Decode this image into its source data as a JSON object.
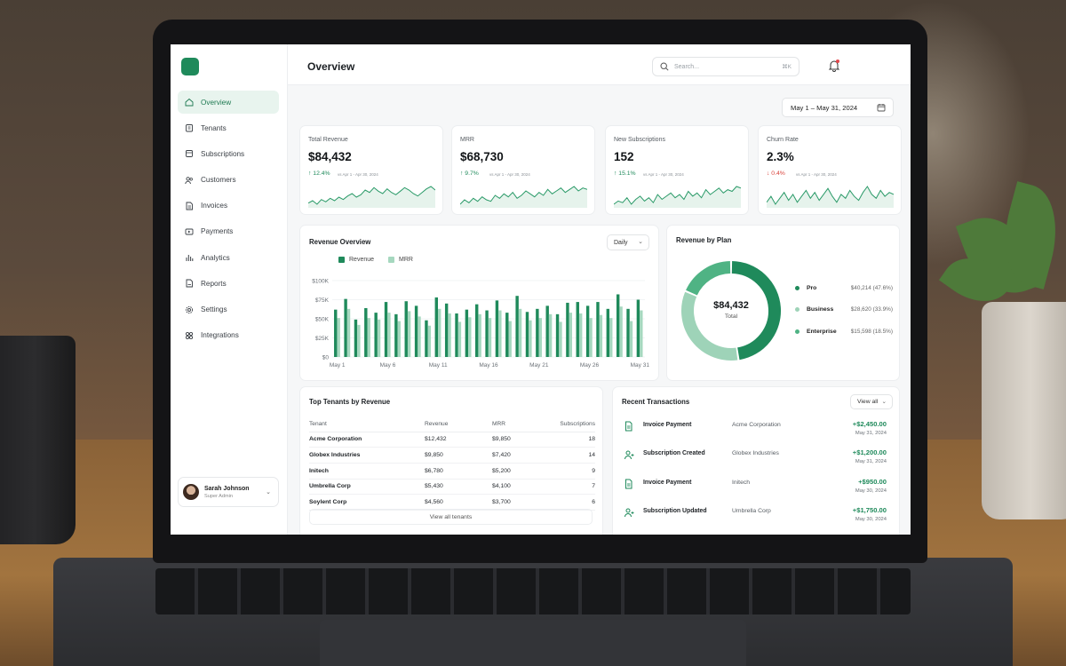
{
  "app": {
    "page_title": "Overview"
  },
  "sidebar": {
    "items": [
      {
        "label": "Overview",
        "icon": "home-icon",
        "active": true
      },
      {
        "label": "Tenants",
        "icon": "building-icon"
      },
      {
        "label": "Subscriptions",
        "icon": "box-icon"
      },
      {
        "label": "Customers",
        "icon": "users-icon"
      },
      {
        "label": "Invoices",
        "icon": "file-icon"
      },
      {
        "label": "Payments",
        "icon": "card-icon"
      },
      {
        "label": "Analytics",
        "icon": "bar-chart-icon"
      },
      {
        "label": "Reports",
        "icon": "report-icon"
      },
      {
        "label": "Settings",
        "icon": "gear-icon"
      },
      {
        "label": "Integrations",
        "icon": "grid-icon"
      }
    ],
    "user": {
      "name": "Sarah Johnson",
      "role": "Super Admin"
    }
  },
  "header": {
    "search_placeholder": "Search...",
    "search_shortcut": "⌘K"
  },
  "date_range": "May 1 – May 31, 2024",
  "kpis": [
    {
      "label": "Total Revenue",
      "value": "$84,432",
      "delta": "↑ 12.4%",
      "period": "vs Apr 1 - Apr 30, 2024",
      "negative": false,
      "trend": [
        22,
        24,
        21,
        25,
        23,
        26,
        24,
        27,
        25,
        28,
        30,
        27,
        29,
        33,
        31,
        35,
        32,
        30,
        34,
        31,
        29,
        32,
        35,
        33,
        30,
        28,
        31,
        34,
        36,
        33
      ]
    },
    {
      "label": "MRR",
      "value": "$68,730",
      "delta": "↑ 9.7%",
      "period": "vs Apr 1 - Apr 30, 2024",
      "negative": false,
      "trend": [
        20,
        23,
        21,
        24,
        22,
        25,
        23,
        22,
        26,
        24,
        27,
        25,
        28,
        24,
        26,
        29,
        27,
        25,
        28,
        26,
        30,
        27,
        29,
        31,
        28,
        30,
        32,
        29,
        31,
        30
      ]
    },
    {
      "label": "New Subscriptions",
      "value": "152",
      "delta": "↑ 15.1%",
      "period": "vs Apr 1 - Apr 30, 2024",
      "negative": false,
      "trend": [
        21,
        23,
        22,
        25,
        21,
        24,
        26,
        23,
        25,
        22,
        27,
        24,
        26,
        28,
        25,
        27,
        24,
        29,
        26,
        28,
        25,
        30,
        27,
        29,
        31,
        28,
        30,
        29,
        32,
        31
      ]
    },
    {
      "label": "Churn Rate",
      "value": "2.3%",
      "delta": "↓ 0.4%",
      "period": "vs Apr 1 - Apr 30, 2024",
      "negative": true,
      "trend": [
        24,
        27,
        23,
        26,
        29,
        25,
        28,
        24,
        27,
        30,
        26,
        29,
        25,
        28,
        31,
        27,
        24,
        28,
        26,
        30,
        27,
        25,
        29,
        32,
        28,
        26,
        30,
        27,
        29,
        28
      ]
    }
  ],
  "revenue_overview": {
    "title": "Revenue Overview",
    "granularity": "Daily",
    "legend": [
      "Revenue",
      "MRR"
    ],
    "colors": {
      "revenue": "#1f8a5b",
      "mrr": "#a6d8bf"
    }
  },
  "revenue_by_plan": {
    "title": "Revenue by Plan",
    "total_value": "$84,432",
    "total_label": "Total",
    "plans": [
      {
        "name": "Pro",
        "value": "$40,214",
        "pct": "(47.6%)",
        "share": 0.476,
        "color": "#1f8a5b"
      },
      {
        "name": "Business",
        "value": "$28,620",
        "pct": "(33.9%)",
        "share": 0.339,
        "color": "#9ed3b8"
      },
      {
        "name": "Enterprise",
        "value": "$15,598",
        "pct": "(18.5%)",
        "share": 0.185,
        "color": "#4fb384"
      }
    ]
  },
  "top_tenants": {
    "title": "Top Tenants by Revenue",
    "columns": [
      "Tenant",
      "Revenue",
      "MRR",
      "Subscriptions"
    ],
    "rows": [
      [
        "Acme Corporation",
        "$12,432",
        "$9,850",
        "18"
      ],
      [
        "Globex Industries",
        "$9,850",
        "$7,420",
        "14"
      ],
      [
        "Initech",
        "$6,780",
        "$5,200",
        "9"
      ],
      [
        "Umbrella Corp",
        "$5,430",
        "$4,100",
        "7"
      ],
      [
        "Soylent Corp",
        "$4,560",
        "$3,700",
        "6"
      ]
    ],
    "view_all": "View all tenants"
  },
  "recent_transactions": {
    "title": "Recent Transactions",
    "view_all": "View all",
    "rows": [
      {
        "type": "Invoice Payment",
        "tenant": "Acme Corporation",
        "amount": "+$2,450.00",
        "date": "May 31, 2024",
        "icon": "invoice-icon"
      },
      {
        "type": "Subscription Created",
        "tenant": "Globex Industries",
        "amount": "+$1,200.00",
        "date": "May 31, 2024",
        "icon": "user-plus-icon"
      },
      {
        "type": "Invoice Payment",
        "tenant": "Initech",
        "amount": "+$950.00",
        "date": "May 30, 2024",
        "icon": "invoice-icon"
      },
      {
        "type": "Subscription Updated",
        "tenant": "Umbrella Corp",
        "amount": "+$1,750.00",
        "date": "May 30, 2024",
        "icon": "user-plus-icon"
      }
    ]
  },
  "chart_data": {
    "type": "bar",
    "x_tick_labels": [
      "May 1",
      "May 6",
      "May 11",
      "May 16",
      "May 21",
      "May 26",
      "May 31"
    ],
    "y_tick_labels": [
      "$100K",
      "$75K",
      "$50K",
      "$25K",
      "$0"
    ],
    "ylim": [
      0,
      100000
    ],
    "legend_placement": "top-left",
    "grid": true,
    "categories": [
      "May 1",
      "May 2",
      "May 3",
      "May 4",
      "May 5",
      "May 6",
      "May 7",
      "May 8",
      "May 9",
      "May 10",
      "May 11",
      "May 12",
      "May 13",
      "May 14",
      "May 15",
      "May 16",
      "May 17",
      "May 18",
      "May 19",
      "May 20",
      "May 21",
      "May 22",
      "May 23",
      "May 24",
      "May 25",
      "May 26",
      "May 27",
      "May 28",
      "May 29",
      "May 30",
      "May 31"
    ],
    "series": [
      {
        "name": "Revenue",
        "values": [
          62000,
          76000,
          49000,
          64000,
          58000,
          72000,
          56000,
          73000,
          67000,
          48000,
          78000,
          70000,
          57000,
          62000,
          69000,
          61000,
          74000,
          58000,
          80000,
          59000,
          63000,
          67000,
          56000,
          71000,
          72000,
          67000,
          72000,
          63000,
          82000,
          63000,
          75000
        ]
      },
      {
        "name": "MRR",
        "values": [
          51000,
          63000,
          42000,
          51000,
          49000,
          58000,
          47000,
          60000,
          53000,
          41000,
          63000,
          57000,
          46000,
          52000,
          56000,
          51000,
          61000,
          47000,
          63000,
          48000,
          51000,
          56000,
          46000,
          58000,
          57000,
          51000,
          55000,
          51000,
          66000,
          47000,
          61000
        ]
      }
    ]
  }
}
